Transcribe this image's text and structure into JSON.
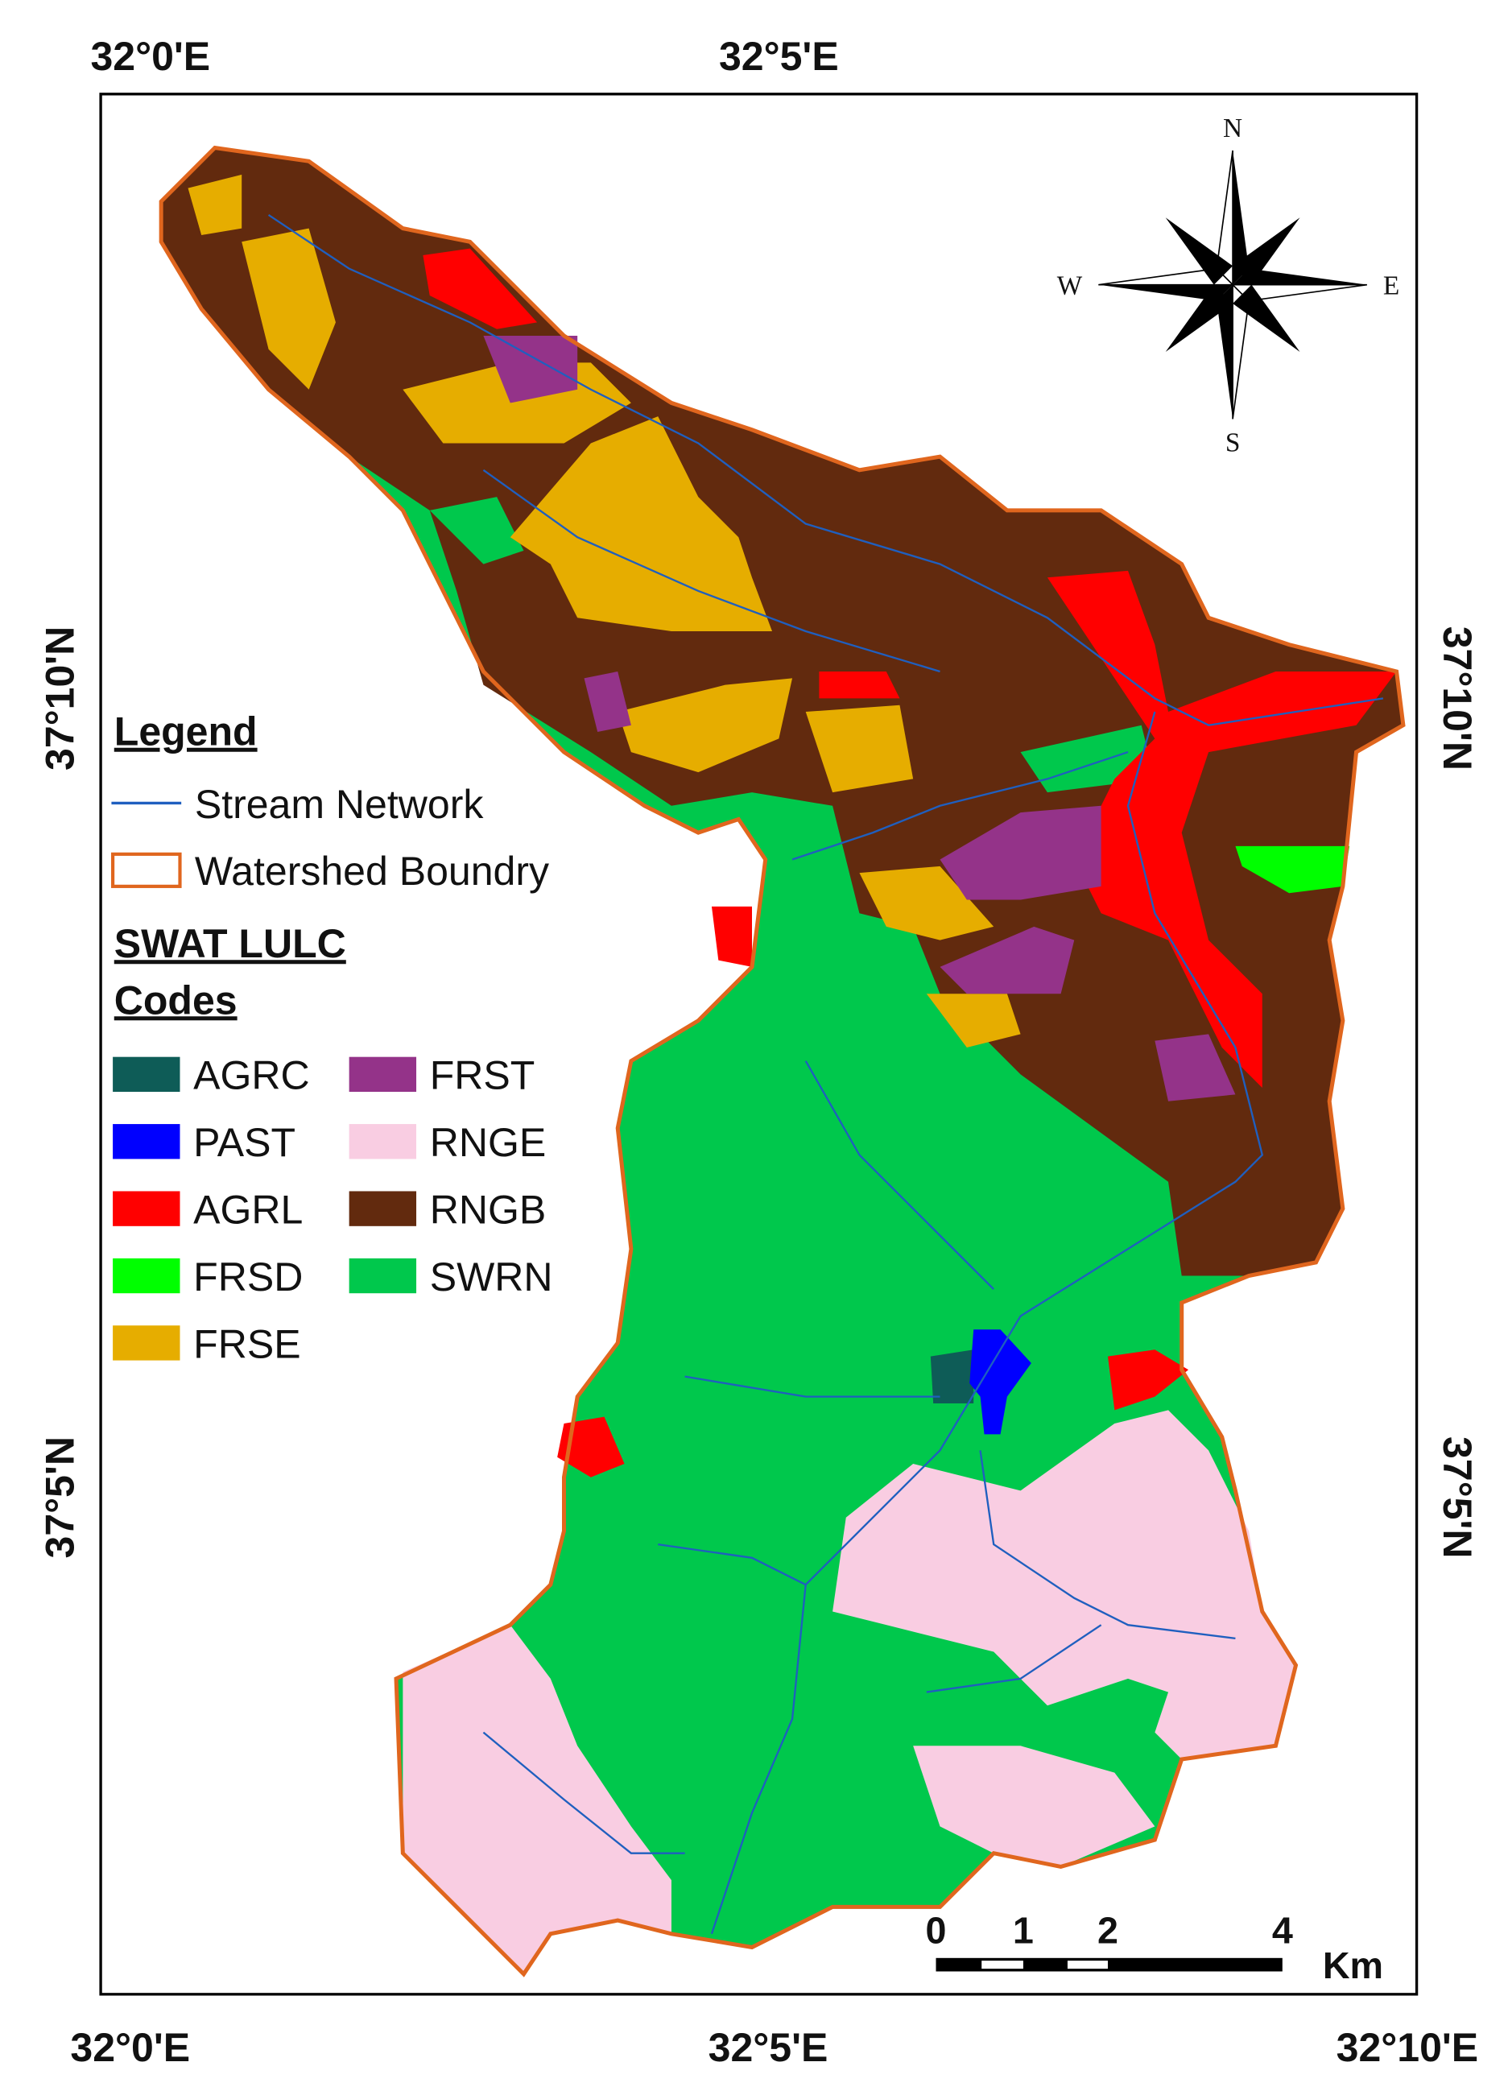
{
  "coordinates": {
    "top": [
      "32°0'E",
      "32°5'E"
    ],
    "bottom": [
      "32°0'E",
      "32°5'E",
      "32°10'E"
    ],
    "left": [
      "37°10'N",
      "37°5'N"
    ],
    "right": [
      "37°10'N",
      "37°5'N"
    ]
  },
  "legend": {
    "title": "Legend",
    "items": [
      {
        "label": "Stream Network",
        "color": "#1f5fbf"
      },
      {
        "label": "Watershed Boundry",
        "color": "#e0661e"
      }
    ],
    "lulc_title": [
      "SWAT LULC",
      "Codes"
    ],
    "classes": [
      {
        "code": "AGRC",
        "color": "#0e5c57"
      },
      {
        "code": "PAST",
        "color": "#0000ff"
      },
      {
        "code": "AGRL",
        "color": "#ff0000"
      },
      {
        "code": "FRSD",
        "color": "#00ff00"
      },
      {
        "code": "FRSE",
        "color": "#e6ad00"
      },
      {
        "code": "FRST",
        "color": "#943389"
      },
      {
        "code": "RNGE",
        "color": "#f9cde2"
      },
      {
        "code": "RNGB",
        "color": "#622a0e"
      },
      {
        "code": "SWRN",
        "color": "#00c84c"
      }
    ]
  },
  "compass": {
    "north": "N",
    "south": "S",
    "west": "W",
    "east": "E"
  },
  "scale_bar": {
    "labels": [
      "0",
      "1",
      "2",
      "4"
    ],
    "unit": "Km"
  }
}
